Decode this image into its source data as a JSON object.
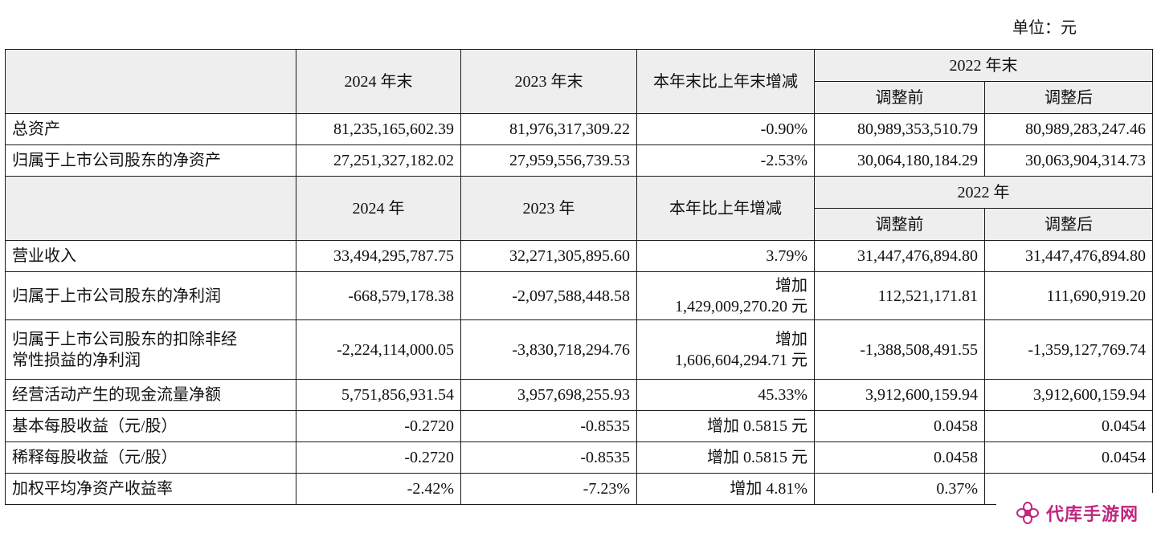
{
  "unit_label": "单位：元",
  "header1": {
    "col_2024": "2024 年末",
    "col_2023": "2023 年末",
    "col_change": "本年末比上年末增减",
    "col_2022": "2022 年末",
    "before": "调整前",
    "after": "调整后"
  },
  "rows1": [
    {
      "label": "总资产",
      "v2024": "81,235,165,602.39",
      "v2023": "81,976,317,309.22",
      "change": "-0.90%",
      "before": "80,989,353,510.79",
      "after": "80,989,283,247.46"
    },
    {
      "label": "归属于上市公司股东的净资产",
      "v2024": "27,251,327,182.02",
      "v2023": "27,959,556,739.53",
      "change": "-2.53%",
      "before": "30,064,180,184.29",
      "after": "30,063,904,314.73"
    }
  ],
  "header2": {
    "col_2024": "2024 年",
    "col_2023": "2023 年",
    "col_change": "本年比上年增减",
    "col_2022": "2022 年",
    "before": "调整前",
    "after": "调整后"
  },
  "rows2": [
    {
      "label": "营业收入",
      "v2024": "33,494,295,787.75",
      "v2023": "32,271,305,895.60",
      "change": "3.79%",
      "before": "31,447,476,894.80",
      "after": "31,447,476,894.80"
    },
    {
      "label": "归属于上市公司股东的净利润",
      "v2024": "-668,579,178.38",
      "v2023": "-2,097,588,448.58",
      "change_line1": "增加",
      "change_line2": "1,429,009,270.20 元",
      "before": "112,521,171.81",
      "after": "111,690,919.20"
    },
    {
      "label_line1": "归属于上市公司股东的扣除非经",
      "label_line2": "常性损益的净利润",
      "v2024": "-2,224,114,000.05",
      "v2023": "-3,830,718,294.76",
      "change_line1": "增加",
      "change_line2": "1,606,604,294.71 元",
      "before": "-1,388,508,491.55",
      "after": "-1,359,127,769.74"
    },
    {
      "label": "经营活动产生的现金流量净额",
      "v2024": "5,751,856,931.54",
      "v2023": "3,957,698,255.93",
      "change": "45.33%",
      "before": "3,912,600,159.94",
      "after": "3,912,600,159.94"
    },
    {
      "label": "基本每股收益（元/股）",
      "v2024": "-0.2720",
      "v2023": "-0.8535",
      "change": "增加 0.5815 元",
      "before": "0.0458",
      "after": "0.0454"
    },
    {
      "label": "稀释每股收益（元/股）",
      "v2024": "-0.2720",
      "v2023": "-0.8535",
      "change": "增加 0.5815 元",
      "before": "0.0458",
      "after": "0.0454"
    },
    {
      "label": "加权平均净资产收益率",
      "v2024": "-2.42%",
      "v2023": "-7.23%",
      "change": "增加 4.81%",
      "before": "0.37%",
      "after": ""
    }
  ],
  "watermark": {
    "text": "代库手游网",
    "color": "#c0267f",
    "icon": "flower-logo-icon"
  }
}
